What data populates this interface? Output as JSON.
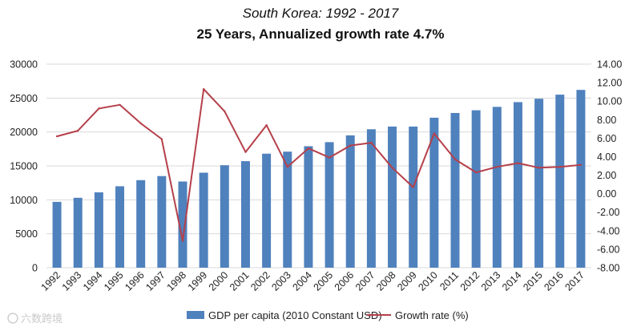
{
  "chart_data": {
    "type": "bar+line",
    "title": "South Korea: 1992 - 2017",
    "subtitle": "25 Years, Annualized growth rate 4.7%",
    "categories": [
      "1992",
      "1993",
      "1994",
      "1995",
      "1996",
      "1997",
      "1998",
      "1999",
      "2000",
      "2001",
      "2002",
      "2003",
      "2004",
      "2005",
      "2006",
      "2007",
      "2008",
      "2009",
      "2010",
      "2011",
      "2012",
      "2013",
      "2014",
      "2015",
      "2016",
      "2017"
    ],
    "series": [
      {
        "name": "GDP per capita (2010 Constant USD)",
        "type": "bar",
        "axis": "left",
        "color": "#4f81bd",
        "values": [
          9700,
          10300,
          11100,
          12000,
          12900,
          13500,
          12700,
          14000,
          15100,
          15700,
          16800,
          17100,
          17900,
          18500,
          19500,
          20400,
          20800,
          20800,
          22100,
          22800,
          23200,
          23700,
          24400,
          24900,
          25500,
          26200
        ]
      },
      {
        "name": "Growth rate (%)",
        "type": "line",
        "axis": "right",
        "color": "#b5404a",
        "values": [
          6.2,
          6.8,
          9.2,
          9.6,
          7.6,
          5.9,
          -5.1,
          11.3,
          8.9,
          4.5,
          7.4,
          2.9,
          4.9,
          3.9,
          5.2,
          5.5,
          2.8,
          0.7,
          6.5,
          3.7,
          2.3,
          2.9,
          3.3,
          2.8,
          2.9,
          3.1
        ]
      }
    ],
    "yleft": {
      "ylim": [
        0,
        30000
      ],
      "ticks": [
        "0",
        "5000",
        "10000",
        "15000",
        "20000",
        "25000",
        "30000"
      ]
    },
    "yright": {
      "ylim": [
        -8,
        14
      ],
      "ticks": [
        "-8.00",
        "-6.00",
        "-4.00",
        "-2.00",
        "0.00",
        "2.00",
        "4.00",
        "6.00",
        "8.00",
        "10.00",
        "12.00",
        "14.00"
      ]
    },
    "grid": true,
    "legend": "bottom"
  },
  "watermark": "六数跨境"
}
